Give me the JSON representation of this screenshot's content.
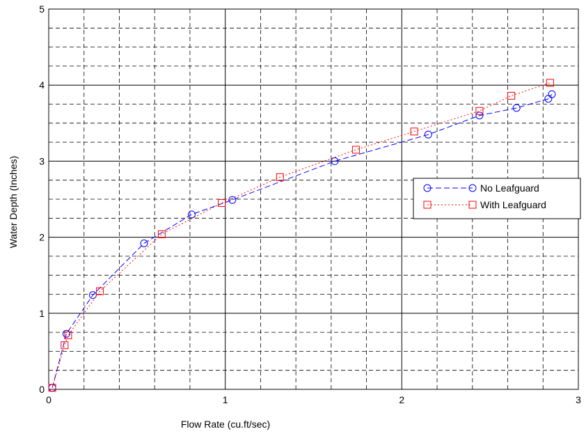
{
  "chart_data": {
    "type": "line",
    "title": "",
    "xlabel": "Flow Rate (cu.ft/sec)",
    "ylabel": "Water Depth (Inches)",
    "xlim": [
      0,
      3
    ],
    "ylim": [
      0,
      5
    ],
    "x_ticks": [
      "0",
      "1",
      "2",
      "3"
    ],
    "y_ticks": [
      "0",
      "1",
      "2",
      "3",
      "4",
      "5"
    ],
    "grid": "major solid, minor dashed",
    "legend_position": "right",
    "series": [
      {
        "name": "No Leafguard",
        "color": "#0000ff",
        "line_style": "dashed",
        "marker": "circle",
        "x": [
          0.02,
          0.1,
          0.25,
          0.54,
          0.81,
          1.04,
          1.62,
          2.15,
          2.44,
          2.65,
          2.83,
          2.85
        ],
        "y": [
          0.02,
          0.73,
          1.24,
          1.92,
          2.3,
          2.49,
          3.0,
          3.35,
          3.6,
          3.7,
          3.82,
          3.88
        ]
      },
      {
        "name": "With Leafguard",
        "color": "#ff0000",
        "line_style": "dotted",
        "marker": "square",
        "x": [
          0.02,
          0.09,
          0.11,
          0.29,
          0.64,
          0.98,
          1.31,
          1.74,
          2.07,
          2.44,
          2.62,
          2.84
        ],
        "y": [
          0.02,
          0.58,
          0.71,
          1.29,
          2.04,
          2.45,
          2.79,
          3.15,
          3.39,
          3.66,
          3.86,
          4.03
        ]
      }
    ]
  }
}
